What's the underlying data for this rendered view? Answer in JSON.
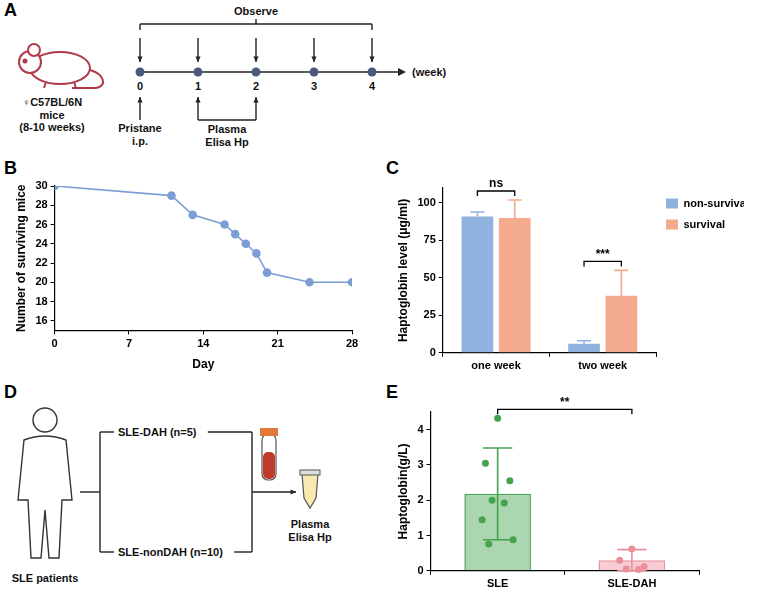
{
  "diagrams": {
    "A": {
      "panel": "A",
      "observe_label": "Observe",
      "mouse_label": [
        "♀C57BL/6N",
        "mice",
        "(8-10 weeks)"
      ],
      "timeline_ticks": [
        0,
        1,
        2,
        3,
        4
      ],
      "unit_label": "(week)",
      "observe_weeks": [
        0,
        1,
        2,
        3,
        4
      ],
      "injection": {
        "week": 0,
        "label": [
          "Pristane",
          "i.p."
        ]
      },
      "sampling": {
        "weeks": [
          1,
          2
        ],
        "label": [
          "Plasma",
          "Elisa Hp"
        ]
      }
    },
    "D": {
      "panel": "D",
      "source_label": "SLE patients",
      "groups": [
        "SLE-DAH (n=5)",
        "SLE-nonDAH (n=10)"
      ],
      "assay_label": [
        "Plasma",
        "Elisa Hp"
      ]
    }
  },
  "chart_data": [
    {
      "panel": "B",
      "type": "line",
      "x": [
        0,
        11,
        13,
        16,
        17,
        18,
        19,
        20,
        24,
        28
      ],
      "values": [
        30,
        29,
        27,
        26,
        25,
        24,
        23,
        21,
        20,
        20
      ],
      "color": "#7b9fd4",
      "marker": "circle",
      "x_label": "Day",
      "y_label": "Number of surviving mice",
      "xlim": [
        0,
        28
      ],
      "xticks": [
        0,
        7,
        14,
        21,
        28
      ],
      "ylim": [
        15,
        30
      ],
      "yticks": [
        16,
        18,
        20,
        22,
        24,
        26,
        28,
        30
      ],
      "grid": false
    },
    {
      "panel": "C",
      "type": "bar",
      "categories": [
        "one week",
        "two week"
      ],
      "series": [
        {
          "name": "non-survival",
          "color": "#8fb2de",
          "values": [
            91,
            6
          ],
          "errors_up": [
            3,
            2
          ]
        },
        {
          "name": "survival",
          "color": "#f4aa8c",
          "values": [
            90,
            38
          ],
          "errors_up": [
            12,
            17
          ]
        }
      ],
      "y_label": "Haptoglobin level (μg/ml)",
      "ylim": [
        0,
        110
      ],
      "yticks": [
        0,
        25,
        50,
        75,
        100
      ],
      "legend": "right",
      "grid": false,
      "annotations": [
        {
          "categories": [
            "one week"
          ],
          "label": "ns"
        },
        {
          "categories": [
            "two week"
          ],
          "label": "***"
        }
      ]
    },
    {
      "panel": "E",
      "type": "bar",
      "categories": [
        "SLE",
        "SLE-DAH"
      ],
      "values": [
        2.18,
        0.3
      ],
      "errors": [
        1.3,
        0.3
      ],
      "points": [
        [
          4.32,
          3.05,
          2.55,
          2.0,
          1.92,
          1.45,
          0.88,
          0.76
        ],
        [
          0.62,
          0.3,
          0.12,
          0.05,
          0.04
        ]
      ],
      "colors": [
        "#45a34f",
        "#ec8f9a"
      ],
      "y_label": "Haptoglobin(g/L)",
      "ylim": [
        0,
        4.5
      ],
      "yticks": [
        0,
        1,
        2,
        3,
        4
      ],
      "grid": false,
      "annotations": [
        {
          "categories": [
            "SLE",
            "SLE-DAH"
          ],
          "label": "**"
        }
      ]
    }
  ]
}
